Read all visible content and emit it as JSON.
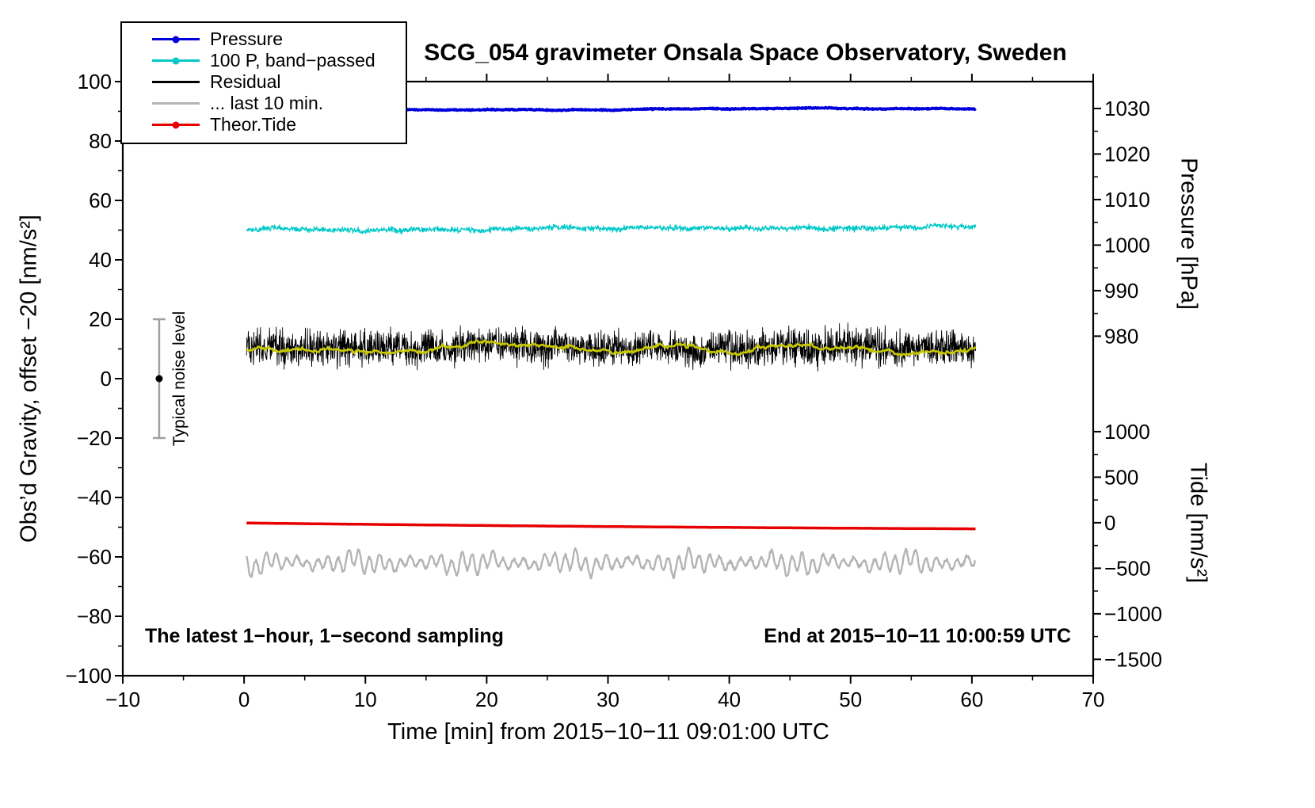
{
  "title": "SCG_054 gravimeter Onsala Space Observatory, Sweden",
  "axes": {
    "x_label": "Time [min] from 2015−10−11 09:01:00 UTC",
    "y_left_label": "Obs’d Gravity, offset −20 [nm/s²]",
    "y_right_top_label": "Pressure [hPa]",
    "y_right_bottom_label": "Tide [nm/s²]"
  },
  "annotations": {
    "bottom_left": "The latest 1−hour, 1−second sampling",
    "bottom_right": "End at 2015−10−11 10:00:59 UTC",
    "noise_label": "Typical noise level"
  },
  "legend": {
    "items": [
      {
        "label": "Pressure",
        "color": "#0000dd",
        "marker": "line-dot"
      },
      {
        "label": "100 P, band−passed",
        "color": "#00c8c8",
        "marker": "line-dot"
      },
      {
        "label": "Residual",
        "color": "#000000",
        "marker": "line"
      },
      {
        "label": "... last 10 min.",
        "color": "#b4b4b4",
        "marker": "line"
      },
      {
        "label": "Theor.Tide",
        "color": "#e60000",
        "marker": "line-dot"
      }
    ]
  },
  "chart_data": {
    "type": "line",
    "title": "SCG_054 gravimeter Onsala Space Observatory, Sweden",
    "xlabel": "Time [min] from 2015−10−11 09:01:00 UTC",
    "ylabel": "Obs’d Gravity, offset −20 [nm/s²]",
    "y2label": "Pressure [hPa]",
    "y3label": "Tide [nm/s²]",
    "xlim": [
      -10,
      70
    ],
    "ylim": [
      -100,
      100
    ],
    "xticks": [
      -10,
      0,
      10,
      20,
      30,
      40,
      50,
      60,
      70
    ],
    "x_minor_step": 5,
    "yticks": [
      -100,
      -80,
      -60,
      -40,
      -20,
      0,
      20,
      40,
      60,
      80,
      100
    ],
    "y_minor_step": 10,
    "grid": false,
    "legend_position": "top-left",
    "pressure_axis": {
      "ticks": [
        1030,
        1020,
        1010,
        1000,
        990,
        980
      ],
      "minor_step": 5,
      "range": [
        980,
        1030
      ],
      "anchor_hpa": 980,
      "anchor_gravity": 14.3,
      "gravity_per_hpa": 1.533
    },
    "tide_axis": {
      "ticks": [
        1000,
        500,
        0,
        -500,
        -1000,
        -1500
      ],
      "minor_step": 250,
      "range": [
        -1500,
        1000
      ],
      "anchor_tide": 0,
      "anchor_gravity": -48.5,
      "gravity_per_unit": 0.03066
    },
    "noise_marker": {
      "x": -7,
      "dot_y": 0,
      "bar": [
        -20,
        20
      ],
      "bar_color": "#a0a0a0",
      "dot_color": "#000000"
    },
    "seed": 20151011,
    "series": [
      {
        "name": "Pressure",
        "color": "#0000dd",
        "width": 3.5,
        "x_range": [
          0.2,
          60.3
        ],
        "baseline": 90.7,
        "noise": 0.3,
        "wander_step": 0.06,
        "wander_damp": 0.995,
        "points_per_min": 30,
        "reads_on": "pressure-axis",
        "approx_value": "≈1029 hPa, nearly constant"
      },
      {
        "name": "100 P, band−passed",
        "color": "#00c8c8",
        "width": 1.2,
        "x_range": [
          0.2,
          60.3
        ],
        "baseline": 50.2,
        "noise": 1.4,
        "wander_step": 0.25,
        "wander_damp": 0.99,
        "points_per_min": 30,
        "reads_on": "left-axis",
        "approx_value": "≈50 nm/s², band 48–52"
      },
      {
        "name": "Residual",
        "color": "#000000",
        "width": 0.9,
        "x_range": [
          0.2,
          60.3
        ],
        "baseline": 10.5,
        "noise": 8.5,
        "wander_step": 0.5,
        "wander_damp": 0.98,
        "points_per_min": 40,
        "reads_on": "left-axis",
        "approx_value": "≈10 nm/s², spikes 2–20"
      },
      {
        "name": "Residual smoothed (yellow overlay)",
        "color": "#c8c800",
        "width": 2.6,
        "x_range": [
          0.2,
          60.3
        ],
        "baseline": 10.2,
        "noise": 0.6,
        "wander_step": 0.8,
        "wander_damp": 0.97,
        "points_per_min": 10,
        "reads_on": "left-axis",
        "approx_value": "≈10 nm/s²"
      },
      {
        "name": "Theor.Tide",
        "color": "#e60000",
        "width": 3.5,
        "x_range": [
          0.2,
          60.3
        ],
        "type": "trend",
        "start": -48.6,
        "slope": -0.047,
        "curvature": 0.00024,
        "points_per_min": 10,
        "reads_on": "tide-axis",
        "approx_value": "tide ≈ −3 → −67 nm/s², slowly decreasing"
      },
      {
        "name": "... last 10 min.",
        "color": "#b4b4b4",
        "width": 2.4,
        "x_range": [
          0.2,
          60.3
        ],
        "type": "oscillatory",
        "baseline": -62,
        "components": [
          {
            "period": 0.85,
            "amp": 3.1,
            "phase": 0.7
          },
          {
            "period": 2.3,
            "amp": 1.4,
            "phase": 2.1
          },
          {
            "period": 5.7,
            "amp": 0.9,
            "phase": 4.2
          }
        ],
        "mod_period": 9,
        "mod_phase": 1.3,
        "noise": 0.5,
        "points_per_min": 20,
        "reads_on": "left-axis",
        "approx_value": "oscillating ≈ −56 to −69 nm/s²"
      }
    ]
  }
}
